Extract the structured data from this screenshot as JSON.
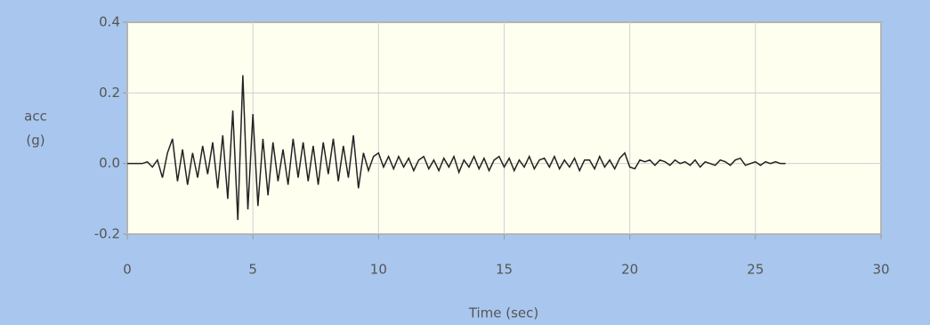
{
  "chart_data": {
    "type": "line",
    "xlabel": "Time (sec)",
    "ylabel": [
      "acc",
      "(g)"
    ],
    "x": [
      0,
      0.2,
      0.4,
      0.6,
      0.8,
      1.0,
      1.2,
      1.4,
      1.6,
      1.8,
      2.0,
      2.2,
      2.4,
      2.6,
      2.8,
      3.0,
      3.2,
      3.4,
      3.6,
      3.8,
      4.0,
      4.2,
      4.4,
      4.6,
      4.8,
      5.0,
      5.2,
      5.4,
      5.6,
      5.8,
      6.0,
      6.2,
      6.4,
      6.6,
      6.8,
      7.0,
      7.2,
      7.4,
      7.6,
      7.8,
      8.0,
      8.2,
      8.4,
      8.6,
      8.8,
      9.0,
      9.2,
      9.4,
      9.6,
      9.8,
      10.0,
      10.2,
      10.4,
      10.6,
      10.8,
      11.0,
      11.2,
      11.4,
      11.6,
      11.8,
      12.0,
      12.2,
      12.4,
      12.6,
      12.8,
      13.0,
      13.2,
      13.4,
      13.6,
      13.8,
      14.0,
      14.2,
      14.4,
      14.6,
      14.8,
      15.0,
      15.2,
      15.4,
      15.6,
      15.8,
      16.0,
      16.2,
      16.4,
      16.6,
      16.8,
      17.0,
      17.2,
      17.4,
      17.6,
      17.8,
      18.0,
      18.2,
      18.4,
      18.6,
      18.8,
      19.0,
      19.2,
      19.4,
      19.6,
      19.8,
      20.0,
      20.2,
      20.4,
      20.6,
      20.8,
      21.0,
      21.2,
      21.4,
      21.6,
      21.8,
      22.0,
      22.2,
      22.4,
      22.6,
      22.8,
      23.0,
      23.2,
      23.4,
      23.6,
      23.8,
      24.0,
      24.2,
      24.4,
      24.6,
      24.8,
      25.0,
      25.2,
      25.4,
      25.6,
      25.8,
      26.0,
      26.2
    ],
    "series": [
      {
        "color": "#222222",
        "values": [
          0,
          0,
          0,
          0,
          0.005,
          -0.01,
          0.01,
          -0.04,
          0.03,
          0.07,
          -0.05,
          0.04,
          -0.06,
          0.03,
          -0.04,
          0.05,
          -0.03,
          0.06,
          -0.07,
          0.08,
          -0.1,
          0.15,
          -0.16,
          0.25,
          -0.13,
          0.14,
          -0.12,
          0.07,
          -0.09,
          0.06,
          -0.05,
          0.04,
          -0.06,
          0.07,
          -0.04,
          0.06,
          -0.05,
          0.05,
          -0.06,
          0.06,
          -0.03,
          0.07,
          -0.05,
          0.05,
          -0.04,
          0.08,
          -0.07,
          0.03,
          -0.02,
          0.02,
          0.03,
          -0.01,
          0.02,
          -0.015,
          0.02,
          -0.01,
          0.015,
          -0.02,
          0.01,
          0.02,
          -0.015,
          0.01,
          -0.02,
          0.015,
          -0.01,
          0.02,
          -0.025,
          0.01,
          -0.01,
          0.02,
          -0.015,
          0.015,
          -0.02,
          0.01,
          0.02,
          -0.01,
          0.015,
          -0.02,
          0.01,
          -0.01,
          0.02,
          -0.015,
          0.01,
          0.015,
          -0.01,
          0.02,
          -0.015,
          0.01,
          -0.01,
          0.015,
          -0.02,
          0.01,
          0.01,
          -0.015,
          0.02,
          -0.01,
          0.01,
          -0.015,
          0.015,
          0.03,
          -0.01,
          -0.015,
          0.01,
          0.005,
          0.01,
          -0.005,
          0.01,
          0.005,
          -0.005,
          0.01,
          0,
          0.005,
          -0.005,
          0.01,
          -0.01,
          0.005,
          0,
          -0.005,
          0.01,
          0.005,
          -0.005,
          0.01,
          0.015,
          -0.005,
          0,
          0.005,
          -0.005,
          0.005,
          0,
          0.005,
          0,
          0
        ]
      }
    ],
    "xlim": [
      0,
      30
    ],
    "xticks": [
      0,
      5,
      10,
      15,
      20,
      25,
      30
    ],
    "ylim": [
      -0.2,
      0.4
    ],
    "yticks": [
      -0.2,
      {
        "value": 0,
        "label": "0.0"
      },
      0.2,
      0.4
    ],
    "grid": true,
    "plot_background": "#fffff0"
  }
}
